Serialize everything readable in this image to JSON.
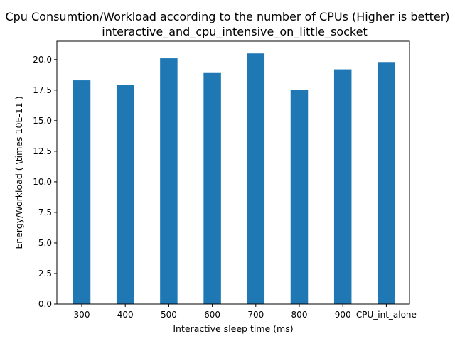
{
  "chart_data": {
    "type": "bar",
    "title_line1": "Cpu Consumtion/Workload according to the number of CPUs (Higher is better)",
    "title_line2": "interactive_and_cpu_intensive_on_little_socket",
    "xlabel": "Interactive sleep time (ms)",
    "ylabel": "Energy/Workload ( \\times 10E-11 )",
    "categories": [
      "300",
      "400",
      "500",
      "600",
      "700",
      "800",
      "900",
      "CPU_int_alone"
    ],
    "values": [
      18.3,
      17.9,
      20.1,
      18.9,
      20.5,
      17.5,
      19.2,
      19.8
    ],
    "ylim": [
      0,
      21.5
    ],
    "yticks": [
      0.0,
      2.5,
      5.0,
      7.5,
      10.0,
      12.5,
      15.0,
      17.5,
      20.0
    ],
    "ytick_labels": [
      "0.0",
      "2.5",
      "5.0",
      "7.5",
      "10.0",
      "12.5",
      "15.0",
      "17.5",
      "20.0"
    ],
    "bar_color": "#1f77b4",
    "grid": false,
    "legend": "none"
  }
}
